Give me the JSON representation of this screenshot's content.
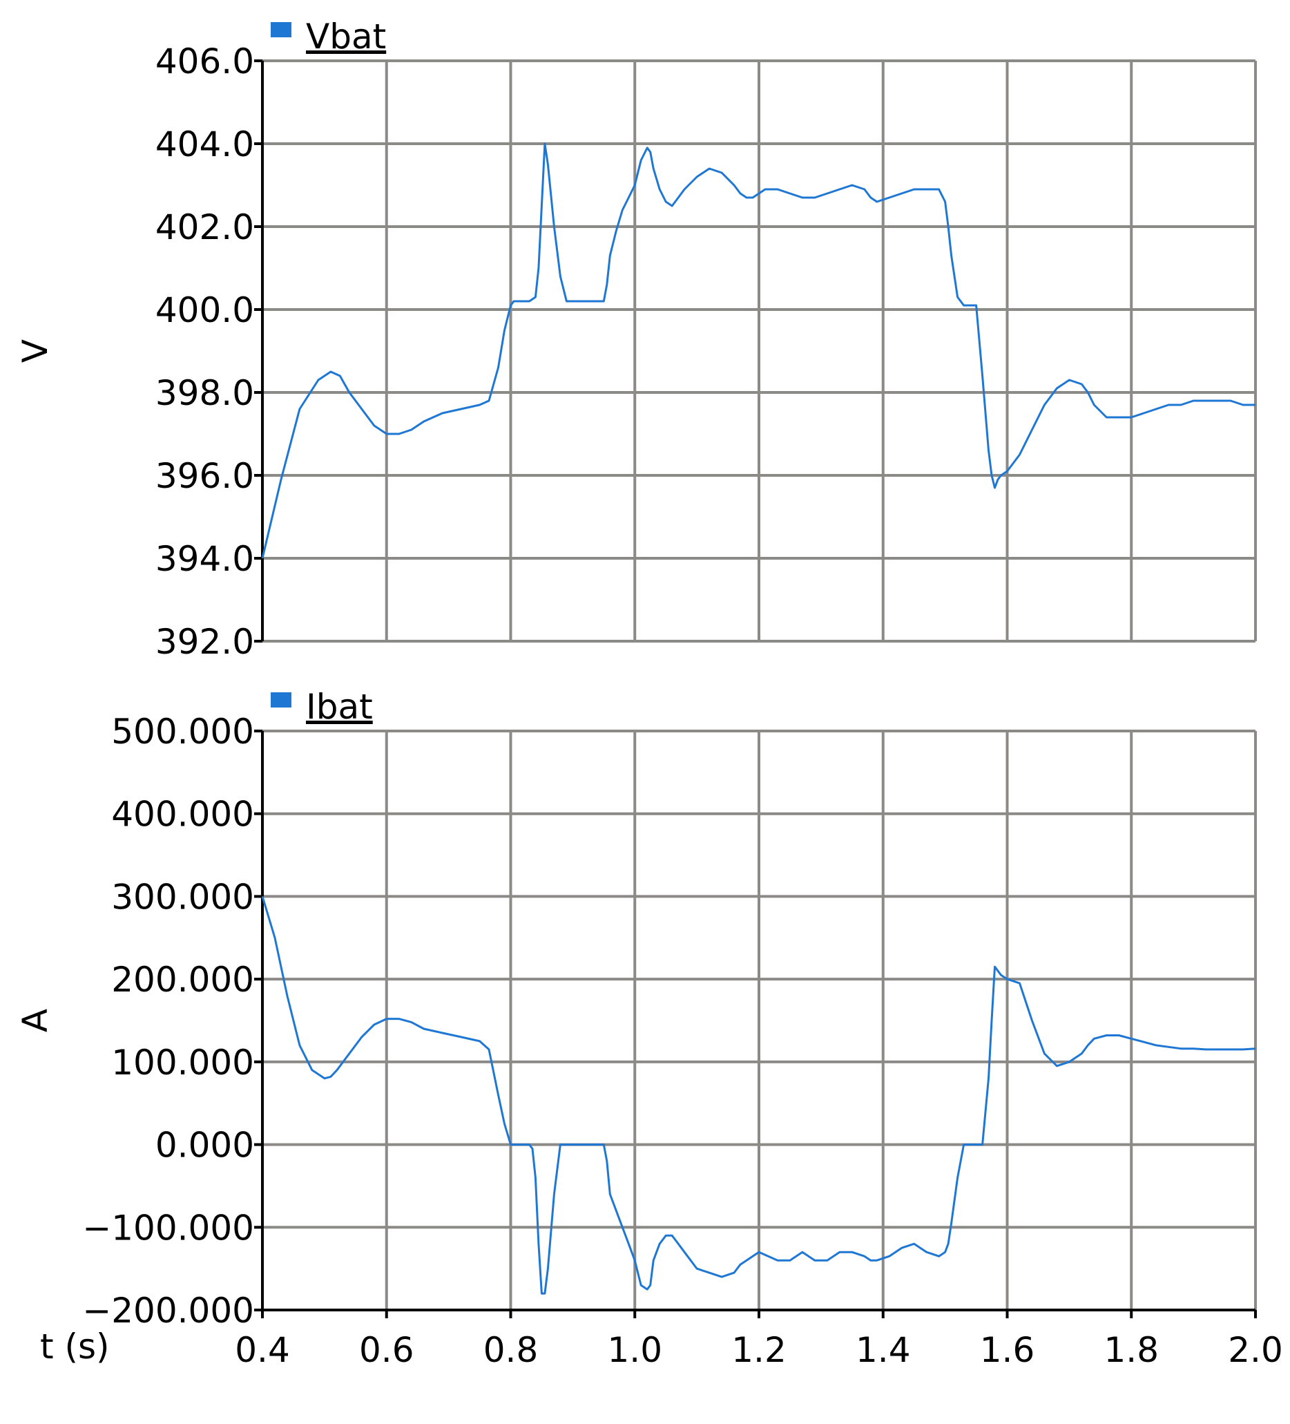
{
  "chart_data": [
    {
      "type": "line",
      "xlabel": "t (s)",
      "ylabel": "V",
      "xlim": [
        0.4,
        2.0
      ],
      "ylim": [
        392.0,
        406.0
      ],
      "grid": true,
      "legend_placement": "top-left",
      "xticks": [
        "0.4",
        "0.6",
        "0.8",
        "1.0",
        "1.2",
        "1.4",
        "1.6",
        "1.8",
        "2.0"
      ],
      "yticks": [
        "392.0",
        "394.0",
        "396.0",
        "398.0",
        "400.0",
        "402.0",
        "404.0",
        "406.0"
      ],
      "series": [
        {
          "name": "Vbat",
          "color": "#1f77d4",
          "x": [
            0.4,
            0.43,
            0.46,
            0.49,
            0.51,
            0.525,
            0.54,
            0.56,
            0.58,
            0.6,
            0.62,
            0.64,
            0.66,
            0.69,
            0.72,
            0.75,
            0.765,
            0.78,
            0.79,
            0.8,
            0.805,
            0.81,
            0.82,
            0.83,
            0.84,
            0.845,
            0.85,
            0.855,
            0.86,
            0.87,
            0.88,
            0.89,
            0.9,
            0.91,
            0.93,
            0.95,
            0.955,
            0.96,
            0.97,
            0.98,
            0.99,
            1.0,
            1.01,
            1.02,
            1.025,
            1.03,
            1.04,
            1.05,
            1.06,
            1.07,
            1.08,
            1.1,
            1.12,
            1.14,
            1.16,
            1.17,
            1.18,
            1.19,
            1.2,
            1.21,
            1.23,
            1.25,
            1.27,
            1.28,
            1.29,
            1.31,
            1.33,
            1.35,
            1.37,
            1.38,
            1.39,
            1.41,
            1.43,
            1.45,
            1.47,
            1.49,
            1.5,
            1.505,
            1.51,
            1.52,
            1.53,
            1.54,
            1.55,
            1.56,
            1.57,
            1.575,
            1.58,
            1.585,
            1.59,
            1.6,
            1.62,
            1.64,
            1.66,
            1.68,
            1.7,
            1.72,
            1.73,
            1.74,
            1.76,
            1.78,
            1.8,
            1.82,
            1.84,
            1.86,
            1.88,
            1.9,
            1.92,
            1.94,
            1.96,
            1.98,
            2.0
          ],
          "values": [
            394.0,
            395.9,
            397.6,
            398.3,
            398.5,
            398.4,
            398.0,
            397.6,
            397.2,
            397.0,
            397.0,
            397.1,
            397.3,
            397.5,
            397.6,
            397.7,
            397.8,
            398.6,
            399.5,
            400.1,
            400.2,
            400.2,
            400.2,
            400.2,
            400.3,
            401.0,
            402.5,
            404.0,
            403.5,
            402.0,
            400.8,
            400.2,
            400.2,
            400.2,
            400.2,
            400.2,
            400.6,
            401.3,
            401.9,
            402.4,
            402.7,
            403.0,
            403.6,
            403.9,
            403.8,
            403.4,
            402.9,
            402.6,
            402.5,
            402.7,
            402.9,
            403.2,
            403.4,
            403.3,
            403.0,
            402.8,
            402.7,
            402.7,
            402.8,
            402.9,
            402.9,
            402.8,
            402.7,
            402.7,
            402.7,
            402.8,
            402.9,
            403.0,
            402.9,
            402.7,
            402.6,
            402.7,
            402.8,
            402.9,
            402.9,
            402.9,
            402.6,
            402.0,
            401.3,
            400.3,
            400.1,
            400.1,
            400.1,
            398.4,
            396.6,
            396.0,
            395.7,
            395.9,
            396.0,
            396.1,
            396.5,
            397.1,
            397.7,
            398.1,
            398.3,
            398.2,
            398.0,
            397.7,
            397.4,
            397.4,
            397.4,
            397.5,
            397.6,
            397.7,
            397.7,
            397.8,
            397.8,
            397.8,
            397.8,
            397.7,
            397.7
          ]
        }
      ]
    },
    {
      "type": "line",
      "xlabel": "t (s)",
      "ylabel": "A",
      "xlim": [
        0.4,
        2.0
      ],
      "ylim": [
        -200.0,
        500.0
      ],
      "grid": true,
      "legend_placement": "top-left",
      "xticks": [
        "0.4",
        "0.6",
        "0.8",
        "1.0",
        "1.2",
        "1.4",
        "1.6",
        "1.8",
        "2.0"
      ],
      "yticks": [
        "−200.000",
        "−100.000",
        "0.000",
        "100.000",
        "200.000",
        "300.000",
        "400.000",
        "500.000"
      ],
      "series": [
        {
          "name": "Ibat",
          "color": "#1f77d4",
          "x": [
            0.4,
            0.42,
            0.44,
            0.46,
            0.48,
            0.5,
            0.51,
            0.52,
            0.54,
            0.56,
            0.58,
            0.6,
            0.62,
            0.64,
            0.66,
            0.69,
            0.72,
            0.75,
            0.765,
            0.78,
            0.79,
            0.8,
            0.81,
            0.82,
            0.83,
            0.835,
            0.84,
            0.845,
            0.85,
            0.855,
            0.86,
            0.87,
            0.88,
            0.89,
            0.9,
            0.91,
            0.93,
            0.95,
            0.955,
            0.96,
            0.97,
            0.98,
            0.99,
            1.0,
            1.01,
            1.02,
            1.025,
            1.03,
            1.04,
            1.05,
            1.06,
            1.07,
            1.08,
            1.1,
            1.12,
            1.14,
            1.16,
            1.17,
            1.18,
            1.19,
            1.2,
            1.23,
            1.25,
            1.27,
            1.28,
            1.29,
            1.31,
            1.33,
            1.35,
            1.37,
            1.38,
            1.39,
            1.41,
            1.43,
            1.45,
            1.47,
            1.49,
            1.5,
            1.505,
            1.51,
            1.52,
            1.53,
            1.54,
            1.55,
            1.56,
            1.57,
            1.575,
            1.58,
            1.59,
            1.6,
            1.62,
            1.64,
            1.66,
            1.68,
            1.7,
            1.72,
            1.73,
            1.74,
            1.76,
            1.78,
            1.8,
            1.82,
            1.84,
            1.86,
            1.88,
            1.9,
            1.92,
            1.94,
            1.96,
            1.98,
            2.0
          ],
          "values": [
            300,
            250,
            180,
            120,
            90,
            80,
            82,
            90,
            110,
            130,
            145,
            152,
            152,
            148,
            140,
            135,
            130,
            125,
            115,
            60,
            25,
            0,
            0,
            0,
            0,
            -5,
            -40,
            -120,
            -180,
            -180,
            -150,
            -60,
            0,
            0,
            0,
            0,
            0,
            0,
            -20,
            -60,
            -80,
            -100,
            -120,
            -140,
            -170,
            -175,
            -170,
            -140,
            -120,
            -110,
            -110,
            -120,
            -130,
            -150,
            -155,
            -160,
            -155,
            -145,
            -140,
            -135,
            -130,
            -140,
            -140,
            -130,
            -135,
            -140,
            -140,
            -130,
            -130,
            -135,
            -140,
            -140,
            -135,
            -125,
            -120,
            -130,
            -135,
            -130,
            -120,
            -95,
            -40,
            0,
            0,
            0,
            0,
            80,
            150,
            215,
            205,
            200,
            195,
            150,
            110,
            95,
            100,
            110,
            120,
            128,
            132,
            132,
            128,
            124,
            120,
            118,
            116,
            116,
            115,
            115,
            115,
            115,
            116
          ]
        }
      ]
    }
  ]
}
